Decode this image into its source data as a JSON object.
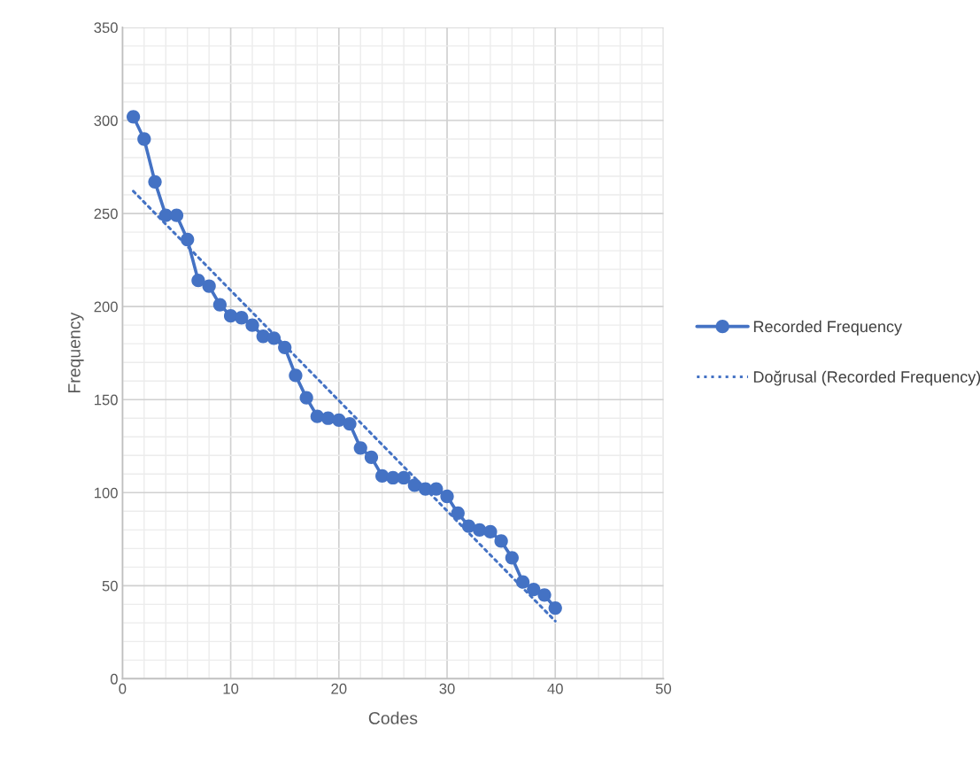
{
  "chart_data": {
    "type": "line",
    "xlabel": "Codes",
    "ylabel": "Frequency",
    "x": [
      1,
      2,
      3,
      4,
      5,
      6,
      7,
      8,
      9,
      10,
      11,
      12,
      13,
      14,
      15,
      16,
      17,
      18,
      19,
      20,
      21,
      22,
      23,
      24,
      25,
      26,
      27,
      28,
      29,
      30,
      31,
      32,
      33,
      34,
      35,
      36,
      37,
      38,
      39,
      40
    ],
    "series": [
      {
        "name": "Recorded Frequency",
        "color": "#4472c4",
        "marker": "circle",
        "line_style": "solid",
        "values": [
          302,
          290,
          267,
          249,
          249,
          236,
          214,
          211,
          201,
          195,
          194,
          190,
          184,
          183,
          178,
          163,
          151,
          141,
          140,
          139,
          137,
          124,
          119,
          109,
          108,
          108,
          104,
          102,
          102,
          98,
          89,
          82,
          80,
          79,
          74,
          65,
          52,
          48,
          45,
          38
        ]
      },
      {
        "name": "Doğrusal (Recorded Frequency)",
        "color": "#4472c4",
        "marker": "none",
        "line_style": "dotted",
        "x": [
          1,
          40
        ],
        "values": [
          262,
          31
        ]
      }
    ],
    "xlim": [
      0,
      50
    ],
    "xticks": [
      0,
      10,
      20,
      30,
      40,
      50
    ],
    "ylim": [
      0,
      350
    ],
    "yticks": [
      0,
      50,
      100,
      150,
      200,
      250,
      300,
      350
    ],
    "grid": true,
    "legend": "right"
  }
}
